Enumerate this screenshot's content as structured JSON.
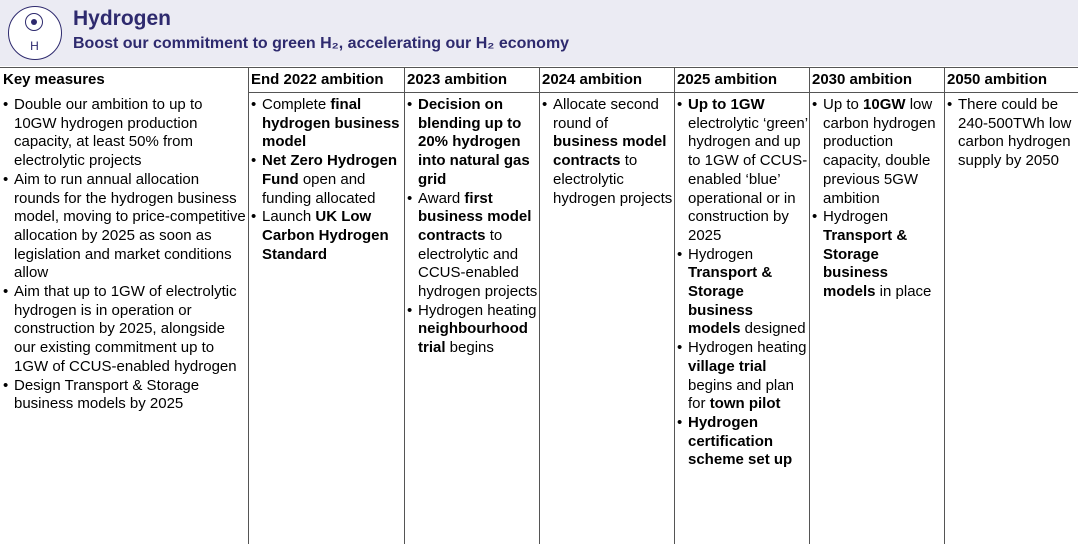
{
  "header": {
    "icon_label": "H",
    "title": "Hydrogen",
    "subtitle": "Boost our commitment to green H₂, accelerating our H₂ economy"
  },
  "table": {
    "columns": [
      {
        "heading": "Key measures",
        "items": [
          [
            {
              "text": "Double our ambition to up to 10GW hydrogen production capacity, at least 50% from electrolytic projects",
              "bold": false
            }
          ],
          [
            {
              "text": "Aim to run annual allocation rounds for the hydrogen business model, moving to price-competitive allocation by 2025 as soon as legislation and market conditions allow",
              "bold": false
            }
          ],
          [
            {
              "text": "Aim that up to 1GW of electrolytic hydrogen is in operation or construction by 2025, alongside our existing commitment up to 1GW of CCUS-enabled hydrogen",
              "bold": false
            }
          ],
          [
            {
              "text": "Design Transport & Storage business models by 2025",
              "bold": false
            }
          ]
        ]
      },
      {
        "heading": "End 2022 ambition",
        "items": [
          [
            {
              "text": "Complete ",
              "bold": false
            },
            {
              "text": "final hydrogen business model",
              "bold": true
            }
          ],
          [
            {
              "text": "Net Zero Hydrogen Fund",
              "bold": true
            },
            {
              "text": " open and funding allocated",
              "bold": false
            }
          ],
          [
            {
              "text": "Launch ",
              "bold": false
            },
            {
              "text": "UK Low Carbon Hydrogen Standard",
              "bold": true
            }
          ]
        ]
      },
      {
        "heading": "2023 ambition",
        "items": [
          [
            {
              "text": "Decision on blending up to 20% hydrogen into natural gas grid",
              "bold": true
            }
          ],
          [
            {
              "text": "Award ",
              "bold": false
            },
            {
              "text": "first business model contracts",
              "bold": true
            },
            {
              "text": " to electrolytic and CCUS-enabled hydrogen projects",
              "bold": false
            }
          ],
          [
            {
              "text": "Hydrogen heating ",
              "bold": false
            },
            {
              "text": "neighbourhood trial",
              "bold": true
            },
            {
              "text": " begins",
              "bold": false
            }
          ]
        ]
      },
      {
        "heading": "2024 ambition",
        "items": [
          [
            {
              "text": "Allocate second round of ",
              "bold": false
            },
            {
              "text": "business model contracts",
              "bold": true
            },
            {
              "text": " to electrolytic hydrogen projects",
              "bold": false
            }
          ]
        ]
      },
      {
        "heading": "2025 ambition",
        "items": [
          [
            {
              "text": "Up to 1GW",
              "bold": true
            },
            {
              "text": " electrolytic ‘green’ hydrogen and up to 1GW of CCUS-enabled ‘blue’ operational or in construction by 2025",
              "bold": false
            }
          ],
          [
            {
              "text": "Hydrogen ",
              "bold": false
            },
            {
              "text": "Transport & Storage business models",
              "bold": true
            },
            {
              "text": " designed",
              "bold": false
            }
          ],
          [
            {
              "text": "Hydrogen heating ",
              "bold": false
            },
            {
              "text": "village trial",
              "bold": true
            },
            {
              "text": " begins and plan for ",
              "bold": false
            },
            {
              "text": "town pilot",
              "bold": true
            }
          ],
          [
            {
              "text": "Hydrogen certification scheme set up",
              "bold": true
            }
          ]
        ]
      },
      {
        "heading": "2030 ambition",
        "items": [
          [
            {
              "text": "Up to ",
              "bold": false
            },
            {
              "text": "10GW",
              "bold": true
            },
            {
              "text": " low carbon hydrogen production capacity, double previous 5GW ambition",
              "bold": false
            }
          ],
          [
            {
              "text": "Hydrogen ",
              "bold": false
            },
            {
              "text": "Transport & Storage business models",
              "bold": true
            },
            {
              "text": " in place",
              "bold": false
            }
          ]
        ]
      },
      {
        "heading": "2050 ambition",
        "items": [
          [
            {
              "text": "There could be 240-500TWh low carbon hydrogen supply by 2050",
              "bold": false
            }
          ]
        ]
      }
    ]
  }
}
